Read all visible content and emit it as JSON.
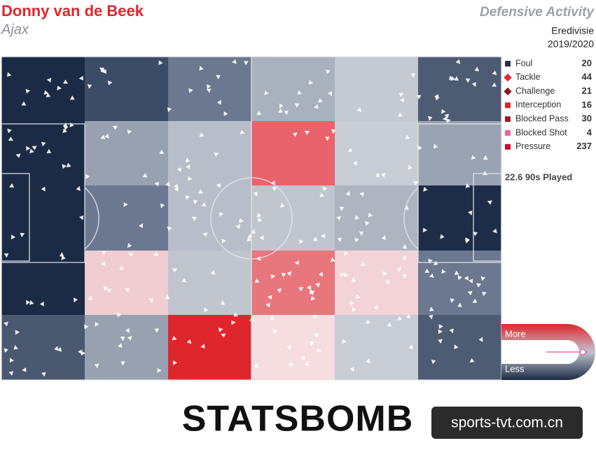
{
  "header": {
    "player": "Donny van de Beek",
    "team": "Ajax",
    "title": "Defensive Activity",
    "competition": "Eredivisie",
    "season": "2019/2020"
  },
  "legend": [
    {
      "label": "Foul",
      "count": "20",
      "color": "#2a2f45"
    },
    {
      "label": "Tackle",
      "count": "44",
      "color": "#e0262d"
    },
    {
      "label": "Challenge",
      "count": "21",
      "color": "#8b1a22"
    },
    {
      "label": "Interception",
      "count": "16",
      "color": "#d6262d"
    },
    {
      "label": "Blocked Pass",
      "count": "30",
      "color": "#a3162a"
    },
    {
      "label": "Blocked Shot",
      "count": "4",
      "color": "#e86aa4"
    },
    {
      "label": "Pressure",
      "count": "237",
      "color": "#c8102e"
    }
  ],
  "played": "22.6 90s Played",
  "scale": {
    "more": "More",
    "less": "Less"
  },
  "heatmap": [
    [
      "#1c2b45",
      "#3d4c66",
      "#6b7890",
      "#a9b1bf",
      "#c4c9d2",
      "#4d5b73"
    ],
    [
      "#1c2b45",
      "#98a1b0",
      "#b8bec9",
      "#e8636b",
      "#c8ccd4",
      "#9aa3b2"
    ],
    [
      "#1c2b45",
      "#6b7890",
      "#b8bec9",
      "#c0c5ce",
      "#aeb5c1",
      "#1e2d47"
    ],
    [
      "#1c2b45",
      "#f0cdd1",
      "#c0c5ce",
      "#e8777d",
      "#f2d4d8",
      "#6b7890"
    ],
    [
      "#4a5870",
      "#98a1b0",
      "#e0262d",
      "#f5dde0",
      "#c8ccd4",
      "#4d5b73"
    ]
  ],
  "footer": {
    "logo": "STATSBOMB",
    "watermark": "sports-tvt.com.cn"
  }
}
